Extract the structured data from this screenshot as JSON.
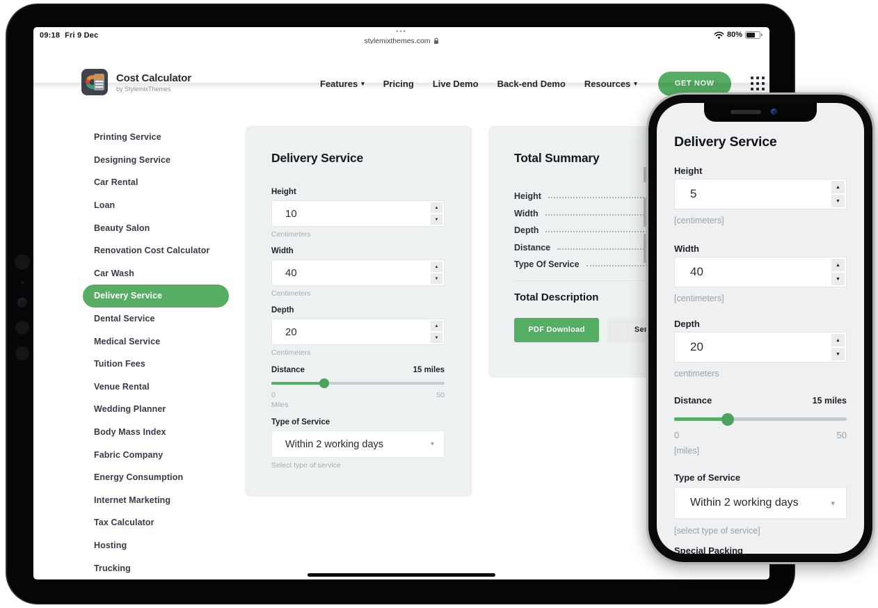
{
  "colors": {
    "accent_green": "#55ae63",
    "dark_text": "#23262b",
    "panel_gray": "#eef1f2",
    "hint_gray": "#a7adb3"
  },
  "device": {
    "time": "09:18",
    "date": "Fri 9 Dec",
    "battery": "80%",
    "url_dots": "•••",
    "url": "stylemixthemes.com"
  },
  "header": {
    "logo_title": "Cost Calculator",
    "logo_subtitle": "by StylemixThemes",
    "nav": [
      {
        "label": "Features",
        "caret": "▾"
      },
      {
        "label": "Pricing"
      },
      {
        "label": "Live Demo"
      },
      {
        "label": "Back-end Demo"
      },
      {
        "label": "Resources",
        "caret": "▾"
      }
    ],
    "cta": "GET NOW"
  },
  "sidebar": {
    "items": [
      {
        "label": "Printing Service"
      },
      {
        "label": "Designing Service"
      },
      {
        "label": "Car Rental"
      },
      {
        "label": "Loan"
      },
      {
        "label": "Beauty Salon"
      },
      {
        "label": "Renovation Cost Calculator"
      },
      {
        "label": "Car Wash"
      },
      {
        "label": "Delivery Service",
        "active": true
      },
      {
        "label": "Dental Service"
      },
      {
        "label": "Medical Service"
      },
      {
        "label": "Tuition Fees"
      },
      {
        "label": "Venue Rental"
      },
      {
        "label": "Wedding Planner"
      },
      {
        "label": "Body Mass Index"
      },
      {
        "label": "Fabric Company"
      },
      {
        "label": "Energy Consumption"
      },
      {
        "label": "Internet Marketing"
      },
      {
        "label": "Tax Calculator"
      },
      {
        "label": "Hosting"
      },
      {
        "label": "Trucking"
      }
    ]
  },
  "calculator": {
    "title": "Delivery Service",
    "height": {
      "label": "Height",
      "value": "10",
      "hint": "Centimeters"
    },
    "width": {
      "label": "Width",
      "value": "40",
      "hint": "Centimeters"
    },
    "depth": {
      "label": "Depth",
      "value": "20",
      "hint": "Centimeters"
    },
    "distance": {
      "label": "Distance",
      "value_label": "15 miles",
      "min": "0",
      "max": "50",
      "hint": "Miles",
      "percent": 30.5
    },
    "service": {
      "label": "Type of Service",
      "value": "Within 2 working days",
      "hint": "Select type of service",
      "caret": "▾"
    }
  },
  "summary": {
    "title": "Total Summary",
    "rows": [
      {
        "label": "Height"
      },
      {
        "label": "Width"
      },
      {
        "label": "Depth"
      },
      {
        "label": "Distance"
      },
      {
        "label": "Type Of Service"
      }
    ],
    "total_label": "Total Description",
    "pdf_button": "PDF Download",
    "send_button": "Send Q"
  },
  "phone": {
    "title": "Delivery Service",
    "height": {
      "label": "Height",
      "value": "5",
      "hint": "[centimeters]"
    },
    "width": {
      "label": "Width",
      "value": "40",
      "hint": "[centimeters]"
    },
    "depth": {
      "label": "Depth",
      "value": "20",
      "hint": "centimeters"
    },
    "distance": {
      "label": "Distance",
      "value_label": "15 miles",
      "min": "0",
      "max": "50",
      "hint": "[miles]",
      "percent": 31
    },
    "service": {
      "label": "Type of Service",
      "value": "Within 2 working days",
      "hint": "[select type of service]",
      "caret": "▾"
    },
    "next_section": "Special Packing"
  },
  "spinner": {
    "up": "▲",
    "down": "▼"
  }
}
